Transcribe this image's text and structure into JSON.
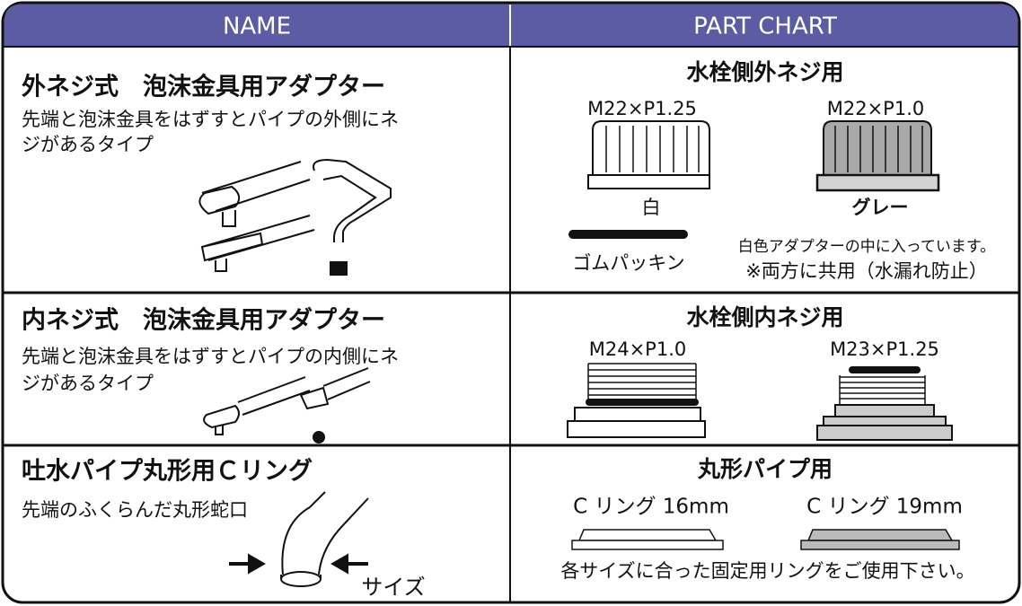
{
  "header": {
    "name": "NAME",
    "part_chart": "PART CHART"
  },
  "rows": [
    {
      "name": {
        "title": "外ネジ式　泡沫金具用アダプター",
        "description": [
          "先端と泡沫金具をはずすとパイプの外側にネ",
          "ジがあるタイプ"
        ]
      },
      "part": {
        "heading": "水栓側外ネジ用",
        "items": [
          {
            "spec": "M22×P1.25",
            "color": "白"
          },
          {
            "spec": "M22×P1.0",
            "color": "グレー"
          }
        ],
        "packing": "ゴムパッキン",
        "notes": [
          "白色アダプターの中に入っています。",
          "※両方に共用（水漏れ防止）"
        ]
      }
    },
    {
      "name": {
        "title": "内ネジ式　泡沫金具用アダプター",
        "description": [
          "先端と泡沫金具をはずすとパイプの内側にネ",
          "ジがあるタイプ"
        ]
      },
      "part": {
        "heading": "水栓側内ネジ用",
        "items": [
          {
            "spec": "M24×P1.0"
          },
          {
            "spec": "M23×P1.25"
          }
        ]
      }
    },
    {
      "name": {
        "title": "吐水パイプ丸形用Ｃリング",
        "description": [
          "先端のふくらんだ丸形蛇口"
        ],
        "size_label": "サイズ"
      },
      "part": {
        "heading": "丸形パイプ用",
        "items": [
          {
            "spec": "C リング 16mm"
          },
          {
            "spec": "C リング 19mm"
          }
        ],
        "notes": [
          "各サイズに合った固定用リングをご使用下さい。"
        ]
      }
    }
  ]
}
